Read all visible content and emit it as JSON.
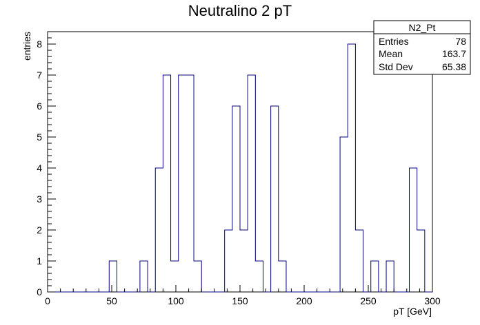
{
  "chart_data": {
    "type": "bar",
    "style": "step-histogram",
    "title": "Neutralino 2 pT",
    "xlabel": "pT [GeV]",
    "ylabel": "entries",
    "xlim": [
      0,
      300
    ],
    "ylim": [
      0,
      8.4
    ],
    "bin_width": 6,
    "bin_edges_start": 0,
    "values": [
      0,
      0,
      0,
      0,
      0,
      0,
      0,
      0,
      1,
      0,
      0,
      0,
      1,
      0,
      4,
      7,
      1,
      7,
      7,
      1,
      0,
      0,
      0,
      2,
      6,
      2,
      7,
      1,
      0,
      6,
      1,
      0,
      0,
      0,
      0,
      0,
      0,
      0,
      5,
      8,
      2,
      0,
      1,
      0,
      1,
      0,
      0,
      4,
      2,
      0
    ],
    "x_ticks": [
      "0",
      "50",
      "100",
      "150",
      "200",
      "250",
      "300"
    ],
    "y_ticks": [
      "0",
      "1",
      "2",
      "3",
      "4",
      "5",
      "6",
      "7",
      "8"
    ],
    "line_color": "#000080",
    "grid": false,
    "legend_placement": "top-right",
    "stats": {
      "name": "N2_Pt",
      "rows": [
        {
          "label": "Entries",
          "value": "78"
        },
        {
          "label": "Mean",
          "value": "163.7"
        },
        {
          "label": "Std Dev",
          "value": "65.38"
        }
      ]
    }
  }
}
